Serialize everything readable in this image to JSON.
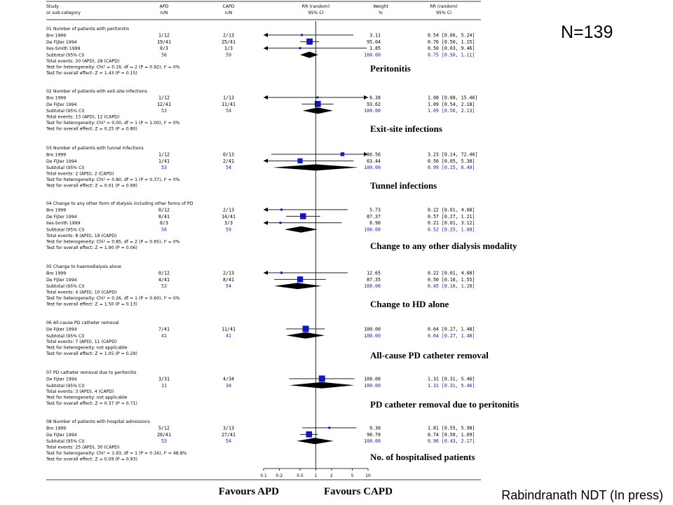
{
  "n_label": "N=139",
  "citation": "Rabindranath NDT (In press)",
  "columns": {
    "study": [
      "Study",
      "or sub-category"
    ],
    "apd": [
      "APD",
      "n/N"
    ],
    "capd": [
      "CAPD",
      "n/N"
    ],
    "rr_plot": [
      "RR (random)",
      "95% CI"
    ],
    "weight": [
      "Weight",
      "%"
    ],
    "rr_text": [
      "RR (random)",
      "95% CI"
    ]
  },
  "favours": {
    "left": "Favours APD",
    "right": "Favours CAPD"
  },
  "chart_data": {
    "type": "forest",
    "x_scale": "log",
    "xlim": [
      0.1,
      10
    ],
    "reference_line": 1,
    "x_ticks": [
      0.1,
      0.2,
      0.5,
      1,
      2,
      5,
      10
    ],
    "x_tick_labels": [
      "0.1",
      "0.2",
      "0.5",
      "1",
      "2",
      "5",
      "10"
    ],
    "groups": [
      {
        "header": "01 Number of patients with peritonitis",
        "callout": "Peritonitis",
        "studies": [
          {
            "name": "Bro 1999",
            "apd": "1/12",
            "capd": "2/13",
            "weight": "3.11",
            "ci_text": "0.54 [0.06, 5.24]",
            "rr": 0.54,
            "lo": 0.06,
            "hi": 5.24
          },
          {
            "name": "De Fijter 1994",
            "apd": "19/41",
            "capd": "25/41",
            "weight": "95.04",
            "ci_text": "0.76 [0.50, 1.15]",
            "rr": 0.76,
            "lo": 0.5,
            "hi": 1.15
          },
          {
            "name": "Iles-Smith 1999",
            "apd": "0/3",
            "capd": "1/3",
            "weight": "1.85",
            "ci_text": "0.50 [0.03, 9.46]",
            "rr": 0.5,
            "lo": 0.03,
            "hi": 9.46
          }
        ],
        "subtotal": {
          "label": "Subtotal (95% CI)",
          "apd": "56",
          "capd": "59",
          "weight": "100.00",
          "ci_text": "0.75 [0.50, 1.11]",
          "rr": 0.75,
          "lo": 0.5,
          "hi": 1.11
        },
        "notes": [
          "Total events: 20 (APD), 28 (CAPD)",
          "Test for heterogeneity: Chi² = 0.16, df = 2 (P = 0.92), I² = 0%",
          "Test for overall effect: Z = 1.43 (P = 0.15)"
        ]
      },
      {
        "header": "02 Number of patients with exit-site infections",
        "callout": "Exit-site infections",
        "studies": [
          {
            "name": "Bro 1999",
            "apd": "1/12",
            "capd": "1/13",
            "weight": "6.38",
            "ci_text": "1.08 [0.08, 15.46]",
            "rr": 1.08,
            "lo": 0.08,
            "hi": 15.46
          },
          {
            "name": "De Fijter 1994",
            "apd": "12/41",
            "capd": "11/41",
            "weight": "93.62",
            "ci_text": "1.09 [0.54, 2.18]",
            "rr": 1.09,
            "lo": 0.54,
            "hi": 2.18
          }
        ],
        "subtotal": {
          "label": "Subtotal (95% CI)",
          "apd": "53",
          "capd": "54",
          "weight": "100.00",
          "ci_text": "1.09 [0.56, 2.13]",
          "rr": 1.09,
          "lo": 0.56,
          "hi": 2.13
        },
        "notes": [
          "Total events: 13 (APD), 12 (CAPD)",
          "Test for heterogeneity: Chi² = 0.00, df = 1 (P = 1.00), I² = 0%",
          "Test for overall effect: Z = 0.25 (P = 0.80)"
        ]
      },
      {
        "header": "03 Number of patients with tunnel infections",
        "callout": "Tunnel infections",
        "studies": [
          {
            "name": "Bro 1999",
            "apd": "1/12",
            "capd": "0/13",
            "weight": "36.56",
            "ci_text": "3.23 [0.14, 72.46]",
            "rr": 3.23,
            "lo": 0.14,
            "hi": 72.46
          },
          {
            "name": "De Fijter 1994",
            "apd": "1/41",
            "capd": "2/41",
            "weight": "63.44",
            "ci_text": "0.50 [0.05, 5.30]",
            "rr": 0.5,
            "lo": 0.05,
            "hi": 5.3
          }
        ],
        "subtotal": {
          "label": "Subtotal (95% CI)",
          "apd": "53",
          "capd": "54",
          "weight": "100.00",
          "ci_text": "0.99 [0.15, 6.49]",
          "rr": 0.99,
          "lo": 0.15,
          "hi": 6.49
        },
        "notes": [
          "Total events: 2 (APD), 2 (CAPD)",
          "Test for heterogeneity: Chi² = 0.80, df = 1 (P = 0.37), I² = 0%",
          "Test for overall effect: Z = 0.01 (P = 0.99)"
        ]
      },
      {
        "header": "04 Change to any other form of dialysis including other forms of PD",
        "callout": "Change to any other dialysis modality",
        "studies": [
          {
            "name": "Bro 1999",
            "apd": "0/12",
            "capd": "2/13",
            "weight": "5.73",
            "ci_text": "0.22 [0.01, 4.08]",
            "rr": 0.22,
            "lo": 0.01,
            "hi": 4.08
          },
          {
            "name": "De Fijter 1994",
            "apd": "8/41",
            "capd": "14/41",
            "weight": "87.37",
            "ci_text": "0.57 [0.27, 1.21]",
            "rr": 0.57,
            "lo": 0.27,
            "hi": 1.21
          },
          {
            "name": "Iles-Smith 1999",
            "apd": "0/3",
            "capd": "3/3",
            "weight": "6.90",
            "ci_text": "0.21 [0.01, 3.12]",
            "rr": 0.21,
            "lo": 0.01,
            "hi": 3.12
          }
        ],
        "subtotal": {
          "label": "Subtotal (95% CI)",
          "apd": "56",
          "capd": "59",
          "weight": "100.00",
          "ci_text": "0.52 [0.25, 1.08]",
          "rr": 0.52,
          "lo": 0.25,
          "hi": 1.08
        },
        "notes": [
          "Total events: 8 (APD), 19 (CAPD)",
          "Test for heterogeneity: Chi² = 0.85, df = 2 (P = 0.65), I² = 0%",
          "Test for overall effect: Z = 1.90 (P = 0.06)"
        ]
      },
      {
        "header": "05 Change to haemodialysis alone",
        "callout": "Change to HD alone",
        "studies": [
          {
            "name": "Bro 1999",
            "apd": "0/12",
            "capd": "2/13",
            "weight": "12.65",
            "ci_text": "0.22 [0.01, 4.08]",
            "rr": 0.22,
            "lo": 0.01,
            "hi": 4.08
          },
          {
            "name": "De Fijter 1994",
            "apd": "4/41",
            "capd": "8/41",
            "weight": "87.35",
            "ci_text": "0.50 [0.16, 1.55]",
            "rr": 0.5,
            "lo": 0.16,
            "hi": 1.55
          }
        ],
        "subtotal": {
          "label": "Subtotal (95% CI)",
          "apd": "53",
          "capd": "54",
          "weight": "100.00",
          "ci_text": "0.45 [0.16, 1.28]",
          "rr": 0.45,
          "lo": 0.16,
          "hi": 1.28
        },
        "notes": [
          "Total events: 4 (APD), 10 (CAPD)",
          "Test for heterogeneity: Chi² = 0.26, df = 1 (P = 0.60), I² = 0%",
          "Test for overall effect: Z = 1.50 (P = 0.13)"
        ]
      },
      {
        "header": "06 All-cause PD catheter removal",
        "callout": "All-cause PD catheter removal",
        "studies": [
          {
            "name": "De Fijter 1994",
            "apd": "7/41",
            "capd": "11/41",
            "weight": "100.00",
            "ci_text": "0.64 [0.27, 1.48]",
            "rr": 0.64,
            "lo": 0.27,
            "hi": 1.48
          }
        ],
        "subtotal": {
          "label": "Subtotal (95% CI)",
          "apd": "41",
          "capd": "41",
          "weight": "100.00",
          "ci_text": "0.64 [0.27, 1.48]",
          "rr": 0.64,
          "lo": 0.27,
          "hi": 1.48
        },
        "notes": [
          "Total events: 7 (APD), 11 (CAPD)",
          "Test for heterogeneity: not applicable",
          "Test for overall effect: Z = 1.05 (P = 0.29)"
        ]
      },
      {
        "header": "07 PD catheter removal due to peritonitis",
        "callout": "PD catheter removal due to peritonitis",
        "studies": [
          {
            "name": "De Fijter 1994",
            "apd": "3/31",
            "capd": "4/34",
            "weight": "100.00",
            "ci_text": "1.31 [0.31, 5.46]",
            "rr": 1.31,
            "lo": 0.31,
            "hi": 5.46
          }
        ],
        "subtotal": {
          "label": "Subtotal (95% CI)",
          "apd": "31",
          "capd": "34",
          "weight": "100.00",
          "ci_text": "1.31 [0.31, 5.46]",
          "rr": 1.31,
          "lo": 0.31,
          "hi": 5.46
        },
        "notes": [
          "Total events: 3 (APD), 4 (CAPD)",
          "Test for heterogeneity: not applicable",
          "Test for overall effect: Z = 0.37 (P = 0.71)"
        ]
      },
      {
        "header": "08 Number of patients with hospital admissions",
        "callout": "No. of hospitalised patients",
        "studies": [
          {
            "name": "Bro 1999",
            "apd": "5/12",
            "capd": "3/13",
            "weight": "9.30",
            "ci_text": "1.81 [0.55, 5.98]",
            "rr": 1.81,
            "lo": 0.55,
            "hi": 5.98
          },
          {
            "name": "De Fijter 1994",
            "apd": "20/41",
            "capd": "27/41",
            "weight": "90.70",
            "ci_text": "0.74 [0.50, 1.09]",
            "rr": 0.74,
            "lo": 0.5,
            "hi": 1.09
          }
        ],
        "subtotal": {
          "label": "Subtotal (95% CI)",
          "apd": "53",
          "capd": "54",
          "weight": "100.00",
          "ci_text": "0.96 [0.43, 2.17]",
          "rr": 0.96,
          "lo": 0.43,
          "hi": 2.17
        },
        "notes": [
          "Total events: 25 (APD), 30 (CAPD)",
          "Test for heterogeneity: Chi² = 1.93, df = 1 (P = 0.16), I² = 48.8%",
          "Test for overall effect: Z = 0.09 (P = 0.93)"
        ]
      }
    ]
  }
}
